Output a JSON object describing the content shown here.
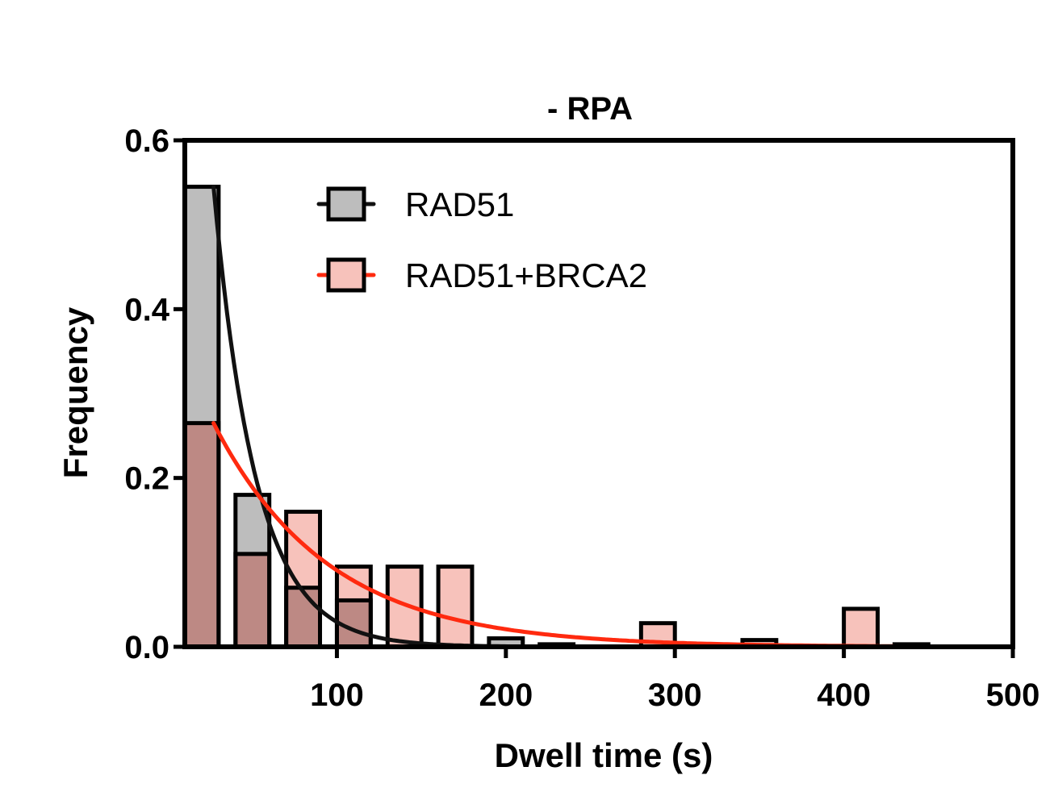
{
  "chart_data": {
    "type": "bar",
    "title": "- RPA",
    "xlabel": "Dwell time (s)",
    "ylabel": "Frequency",
    "xlim": [
      10,
      500
    ],
    "ylim": [
      0,
      0.6
    ],
    "x_ticks": [
      {
        "value": 100,
        "label": "100"
      },
      {
        "value": 200,
        "label": "200"
      },
      {
        "value": 300,
        "label": "300"
      },
      {
        "value": 400,
        "label": "400"
      },
      {
        "value": 500,
        "label": "500"
      }
    ],
    "y_ticks": [
      {
        "value": 0.0,
        "label": "0.0"
      },
      {
        "value": 0.2,
        "label": "0.2"
      },
      {
        "value": 0.4,
        "label": "0.4"
      },
      {
        "value": 0.6,
        "label": "0.6"
      }
    ],
    "bin_width": 20,
    "bins": [
      20,
      50,
      80,
      110,
      140,
      170,
      200,
      230,
      290,
      350,
      410,
      440
    ],
    "series": [
      {
        "name": "RAD51",
        "color": "#bdbdbd",
        "fit_color": "#111111",
        "values": [
          0.545,
          0.18,
          0.07,
          0.055,
          0.0,
          0.0,
          0.01,
          0.003,
          0.0,
          0.0,
          0.0,
          0.0
        ],
        "fit": {
          "model": "single-exponential",
          "A": 0.545,
          "tau": 25,
          "x_from": 27,
          "x_to": 430
        }
      },
      {
        "name": "RAD51+BRCA2",
        "color": "#f7c2bb",
        "fit_color": "#ff2a0f",
        "values": [
          0.265,
          0.11,
          0.16,
          0.095,
          0.095,
          0.095,
          0.0,
          0.0,
          0.028,
          0.008,
          0.045,
          0.003
        ],
        "fit": {
          "model": "single-exponential",
          "A": 0.265,
          "tau": 68,
          "x_from": 27,
          "x_to": 430
        }
      }
    ],
    "overlap_color": "#bd8984",
    "grid": false,
    "legend_position": "top-center"
  }
}
